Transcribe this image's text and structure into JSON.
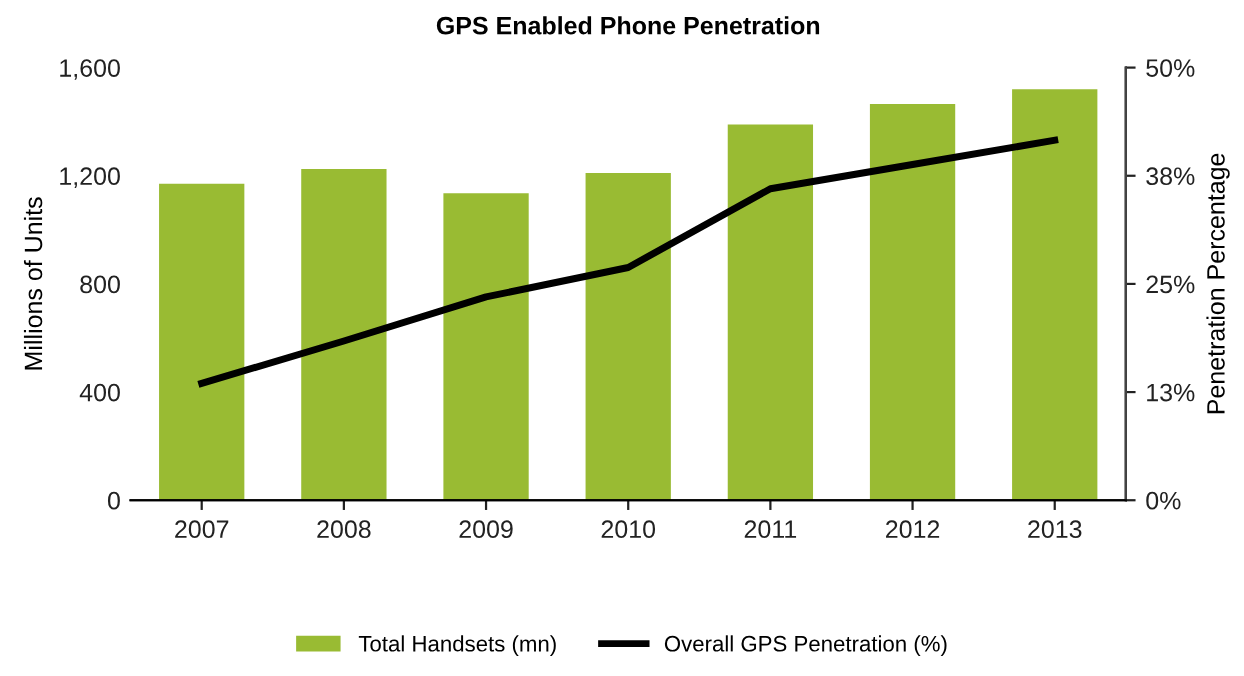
{
  "chart_data": {
    "type": "bar",
    "title": "GPS Enabled Phone Penetration",
    "ylabel": "Millions of Units",
    "y2label": "Penetration Percentage",
    "categories": [
      "2007",
      "2008",
      "2009",
      "2010",
      "2011",
      "2012",
      "2013"
    ],
    "series": [
      {
        "name": "Total Handsets (mn)",
        "color": "#99bb33",
        "values": [
          1170,
          1225,
          1135,
          1210,
          1390,
          1465,
          1520
        ]
      },
      {
        "name": "Overall GPS Penetration (%)",
        "type": "line",
        "axis": "y2",
        "color": "#000000",
        "values": [
          13.5,
          18.4,
          23.5,
          26.9,
          36.0,
          38.8,
          41.6
        ]
      }
    ],
    "ylim": [
      0,
      1600
    ],
    "yticks": [
      {
        "value": 0,
        "label": "0"
      },
      {
        "value": 400,
        "label": "400"
      },
      {
        "value": 800,
        "label": "800"
      },
      {
        "value": 1200,
        "label": "1,200"
      },
      {
        "value": 1600,
        "label": "1,600"
      }
    ],
    "y2lim": [
      0,
      50
    ],
    "y2ticks": [
      {
        "value": 0,
        "label": "0%"
      },
      {
        "value": 12.5,
        "label": "13%"
      },
      {
        "value": 25,
        "label": "25%"
      },
      {
        "value": 37.5,
        "label": "38%"
      },
      {
        "value": 50,
        "label": "50%"
      }
    ],
    "grid": false,
    "legend": "bottom",
    "marker": "none",
    "line_style": "solid"
  }
}
